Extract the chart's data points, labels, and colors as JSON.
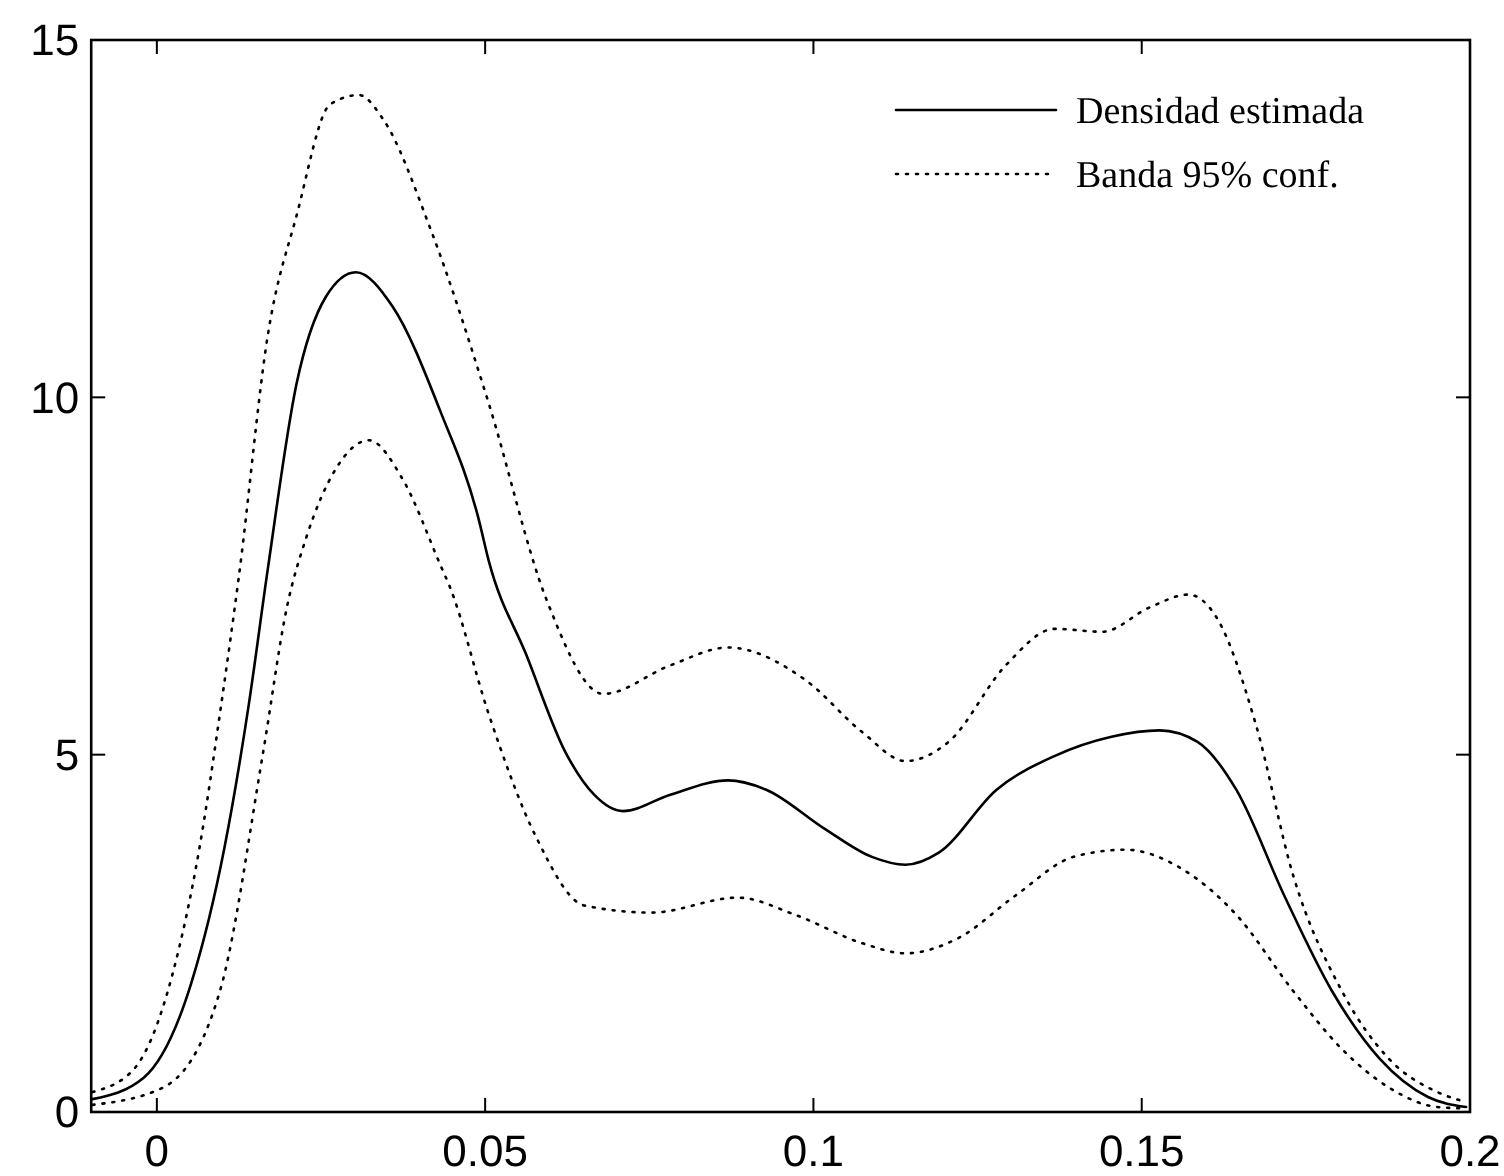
{
  "chart_data": {
    "type": "line",
    "xlim": [
      -0.01,
      0.2
    ],
    "ylim": [
      0,
      15
    ],
    "xticks": [
      0,
      0.05,
      0.1,
      0.15,
      0.2
    ],
    "yticks": [
      0,
      5,
      10,
      15
    ],
    "legend": "top right",
    "grid": false,
    "series": [
      {
        "name": "Densidad estimada",
        "color": "#000000",
        "line_style": "solid",
        "x": [
          -0.0098,
          -0.002,
          0.0053,
          0.0103,
          0.014,
          0.0169,
          0.0213,
          0.0257,
          0.0303,
          0.0359,
          0.0432,
          0.049,
          0.0505,
          0.0563,
          0.0622,
          0.0666,
          0.071,
          0.0782,
          0.087,
          0.0928,
          0.1016,
          0.1089,
          0.114,
          0.1191,
          0.1279,
          0.1367,
          0.1454,
          0.1527,
          0.1585,
          0.1644,
          0.1717,
          0.179,
          0.1863,
          0.1936,
          0.1994
        ],
        "values": [
          0.18,
          0.48,
          1.82,
          3.7,
          5.7,
          7.6,
          10.2,
          11.4,
          11.75,
          11.27,
          9.8,
          8.3,
          7.73,
          6.39,
          5.04,
          4.44,
          4.21,
          4.44,
          4.64,
          4.51,
          3.97,
          3.57,
          3.46,
          3.63,
          4.51,
          4.98,
          5.25,
          5.34,
          5.18,
          4.51,
          3.03,
          1.69,
          0.74,
          0.21,
          0.07
        ]
      },
      {
        "name": "Banda 95% conf.",
        "color": "#000000",
        "line_style": "dotted",
        "x": [
          -0.0098,
          -0.0035,
          0.0023,
          0.0065,
          0.0098,
          0.0125,
          0.0169,
          0.0213,
          0.0264,
          0.0308,
          0.0344,
          0.0417,
          0.0505,
          0.0593,
          0.068,
          0.0782,
          0.087,
          0.0987,
          0.1075,
          0.114,
          0.1206,
          0.1293,
          0.1367,
          0.144,
          0.1512,
          0.1571,
          0.1614,
          0.1673,
          0.1731,
          0.1805,
          0.1877,
          0.195,
          0.1994
        ],
        "values": [
          0.28,
          0.6,
          1.9,
          3.7,
          5.7,
          7.5,
          10.87,
          12.55,
          14.1,
          14.23,
          13.9,
          12.35,
          9.93,
          7.18,
          5.85,
          6.25,
          6.5,
          6.05,
          5.31,
          4.91,
          5.18,
          6.25,
          6.76,
          6.72,
          7.06,
          7.24,
          6.92,
          5.45,
          3.3,
          1.69,
          0.74,
          0.28,
          0.14
        ]
      },
      {
        "color": "#000000",
        "line_style": "dotted",
        "x": [
          -0.0098,
          0.0009,
          0.0096,
          0.0162,
          0.0198,
          0.0228,
          0.0272,
          0.0323,
          0.0374,
          0.0432,
          0.0447,
          0.0505,
          0.0578,
          0.0651,
          0.0753,
          0.0885,
          0.0972,
          0.1075,
          0.114,
          0.122,
          0.1308,
          0.1396,
          0.1476,
          0.1556,
          0.1644,
          0.1731,
          0.1805,
          0.1877,
          0.195,
          0.1994
        ],
        "values": [
          0.1,
          0.34,
          1.69,
          5.04,
          7.06,
          8.05,
          8.99,
          9.4,
          8.86,
          7.65,
          7.33,
          5.58,
          3.84,
          2.89,
          2.79,
          3.0,
          2.76,
          2.36,
          2.22,
          2.43,
          3.03,
          3.57,
          3.67,
          3.43,
          2.76,
          1.69,
          0.88,
          0.34,
          0.07,
          0.05
        ]
      }
    ]
  }
}
